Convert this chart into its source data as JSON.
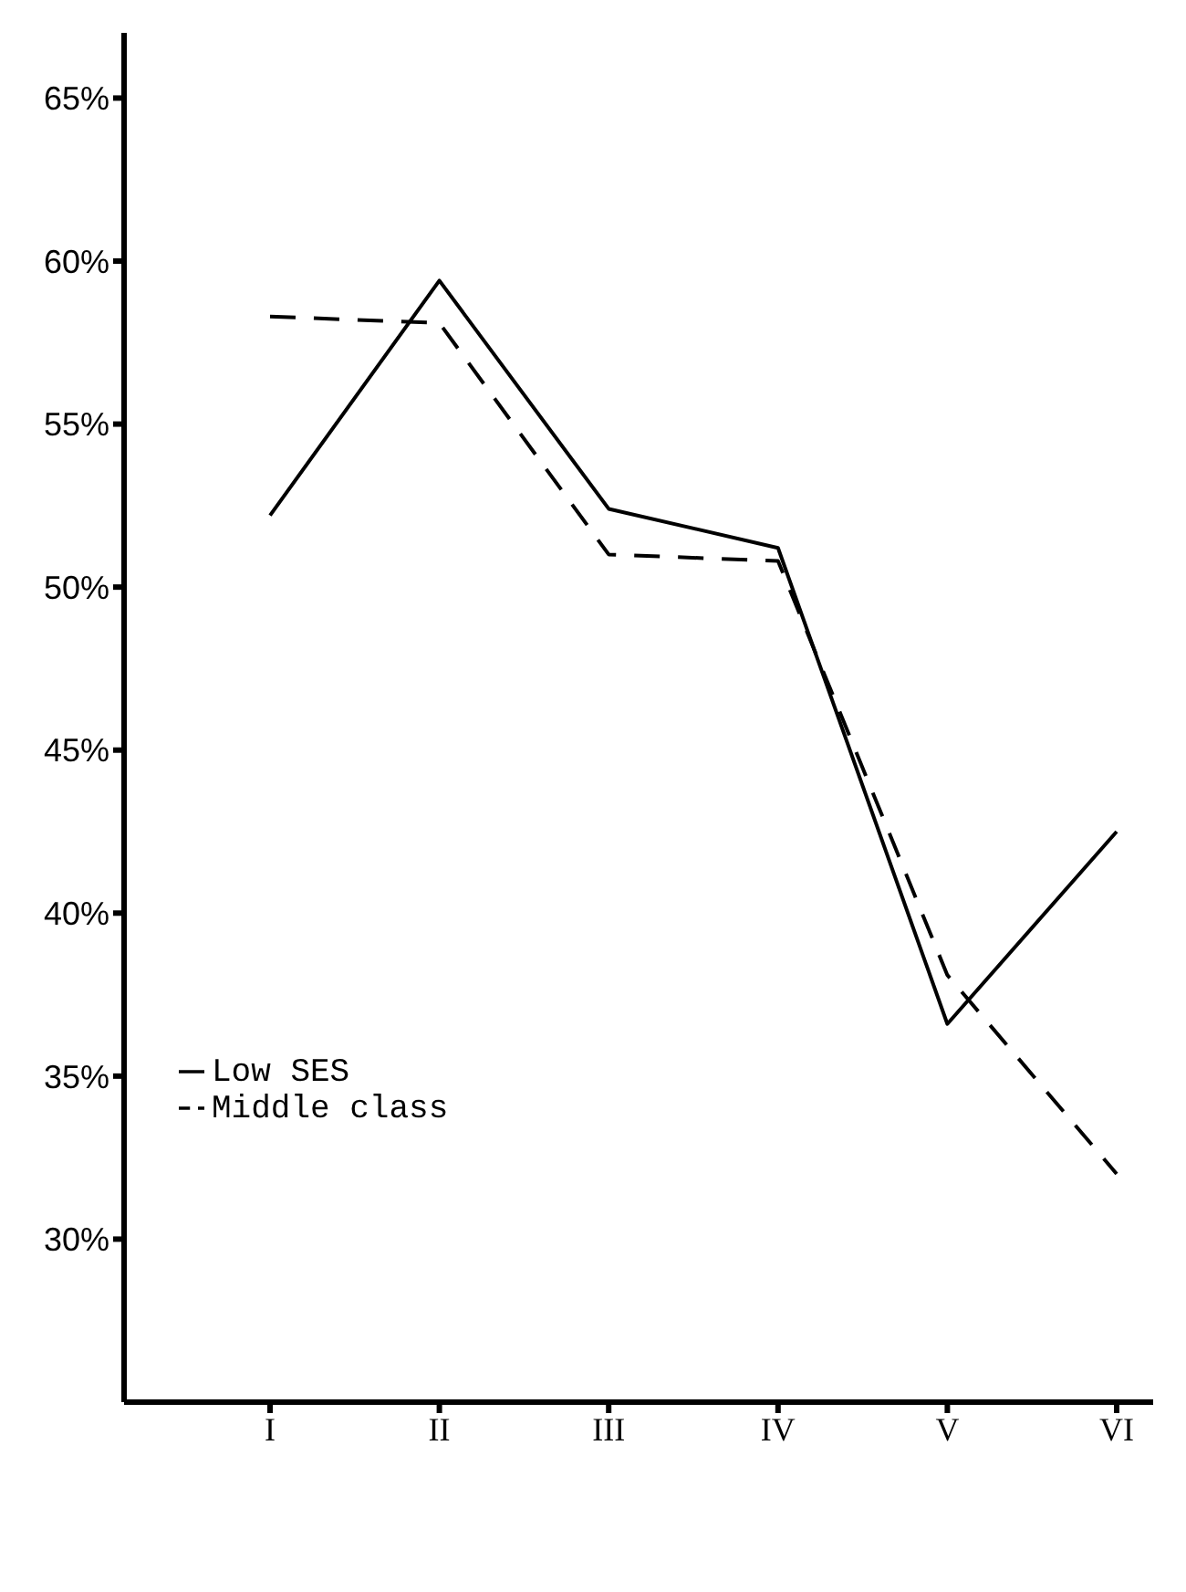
{
  "chart_data": {
    "type": "line",
    "categories": [
      "I",
      "II",
      "III",
      "IV",
      "V",
      "VI"
    ],
    "series": [
      {
        "name": "Low SES",
        "color": "#000000",
        "line_style": "solid",
        "values": [
          52.2,
          59.4,
          52.4,
          51.2,
          36.6,
          42.5
        ]
      },
      {
        "name": "Middle class",
        "color": "#000000",
        "line_style": "dashed",
        "values": [
          58.3,
          58.1,
          51.0,
          50.8,
          38.1,
          32.0
        ]
      }
    ],
    "ylim": [
      25,
      67
    ],
    "yticks": [
      {
        "value": 30,
        "label": "30%"
      },
      {
        "value": 35,
        "label": "35%"
      },
      {
        "value": 40,
        "label": "40%"
      },
      {
        "value": 45,
        "label": "45%"
      },
      {
        "value": 50,
        "label": "50%"
      },
      {
        "value": 55,
        "label": "55%"
      },
      {
        "value": 60,
        "label": "60%"
      },
      {
        "value": 65,
        "label": "65%"
      }
    ],
    "marker": "none",
    "grid": false,
    "legend": "bottom left"
  }
}
